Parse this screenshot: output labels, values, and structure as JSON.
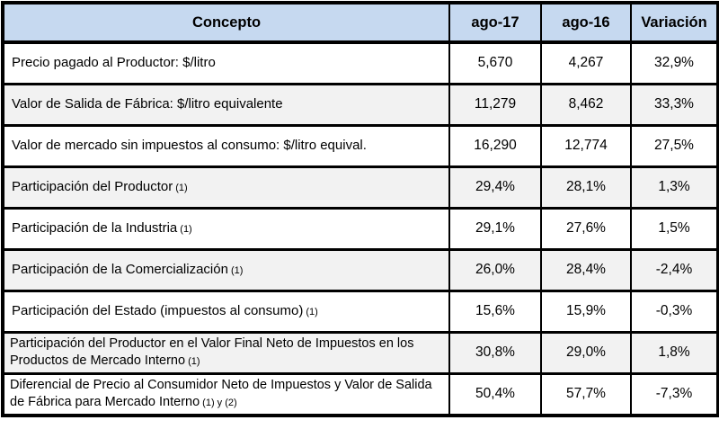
{
  "table": {
    "columns": {
      "concepto": "Concepto",
      "ago17": "ago-17",
      "ago16": "ago-16",
      "variacion": "Variación"
    },
    "rows": [
      {
        "concepto": "Precio pagado al Productor: $/litro",
        "note": "",
        "ago17": "5,670",
        "ago16": "4,267",
        "variacion": "32,9%"
      },
      {
        "concepto": "Valor de Salida de Fábrica: $/litro equivalente",
        "note": "",
        "ago17": "11,279",
        "ago16": "8,462",
        "variacion": "33,3%"
      },
      {
        "concepto": "Valor de mercado sin impuestos al consumo: $/litro equival.",
        "note": "",
        "ago17": "16,290",
        "ago16": "12,774",
        "variacion": "27,5%"
      },
      {
        "concepto": "Participación del Productor",
        "note": "(1)",
        "ago17": "29,4%",
        "ago16": "28,1%",
        "variacion": "1,3%"
      },
      {
        "concepto": "Participación de la Industria",
        "note": "(1)",
        "ago17": "29,1%",
        "ago16": "27,6%",
        "variacion": "1,5%"
      },
      {
        "concepto": "Participación de la Comercialización",
        "note": "(1)",
        "ago17": "26,0%",
        "ago16": "28,4%",
        "variacion": "-2,4%"
      },
      {
        "concepto": "Participación del Estado (impuestos al consumo)",
        "note": "(1)",
        "ago17": "15,6%",
        "ago16": "15,9%",
        "variacion": "-0,3%"
      },
      {
        "concepto": "Participación del Productor en el Valor Final Neto de Impuestos en los Productos de Mercado Interno",
        "note": "(1)",
        "ago17": "30,8%",
        "ago16": "29,0%",
        "variacion": "1,8%"
      },
      {
        "concepto": "Diferencial de Precio al Consumidor Neto de Impuestos y Valor de Salida de Fábrica para Mercado Interno",
        "note": "(1) y (2)",
        "ago17": "50,4%",
        "ago16": "57,7%",
        "variacion": "-7,3%"
      }
    ],
    "colors": {
      "header_bg": "#C6D9F0",
      "alt_row_bg": "#F2F2F2",
      "row_bg": "#FFFFFF",
      "border": "#000000",
      "text": "#000000"
    }
  }
}
